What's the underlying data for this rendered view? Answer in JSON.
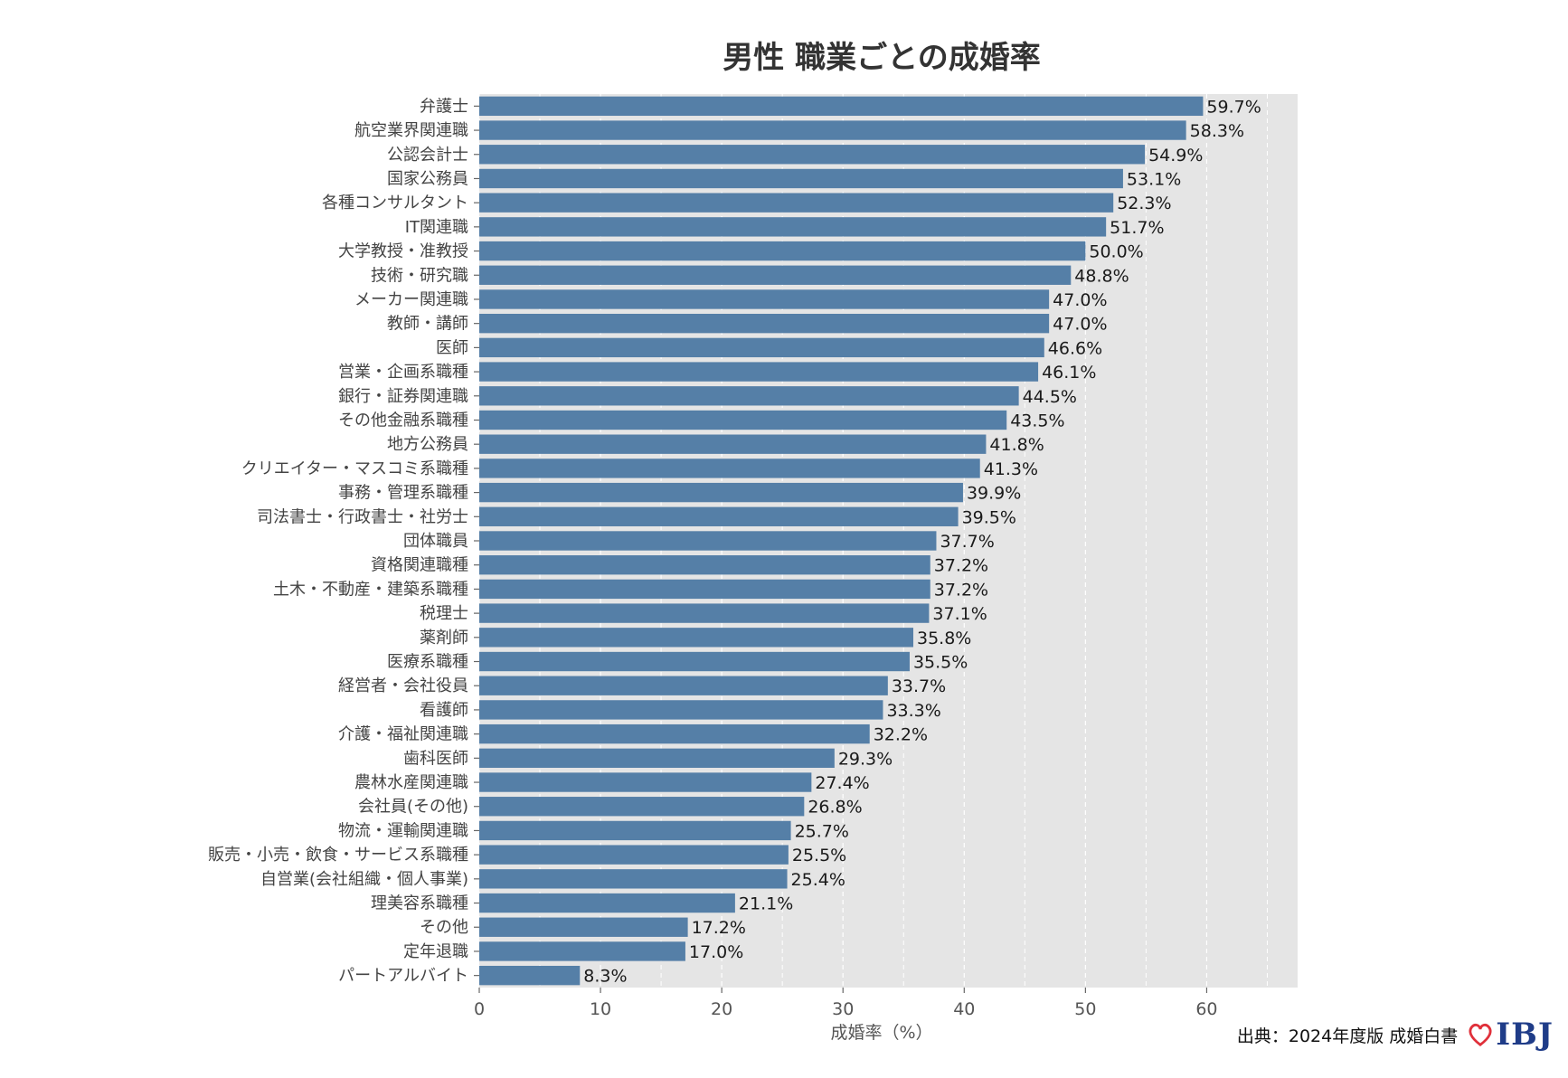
{
  "chart_data": {
    "type": "bar",
    "orientation": "horizontal",
    "title": "男性 職業ごとの成婚率",
    "xlabel": "成婚率（%）",
    "ylabel": "",
    "xlim": [
      0,
      67.5
    ],
    "xticks": [
      0,
      10,
      20,
      30,
      40,
      50,
      60
    ],
    "grid": true,
    "value_suffix": "%",
    "bar_color": "#557fa7",
    "background_color": "#e5e5e5",
    "categories": [
      "弁護士",
      "航空業界関連職",
      "公認会計士",
      "国家公務員",
      "各種コンサルタント",
      "IT関連職",
      "大学教授・准教授",
      "技術・研究職",
      "メーカー関連職",
      "教師・講師",
      "医師",
      "営業・企画系職種",
      "銀行・証券関連職",
      "その他金融系職種",
      "地方公務員",
      "クリエイター・マスコミ系職種",
      "事務・管理系職種",
      "司法書士・行政書士・社労士",
      "団体職員",
      "資格関連職種",
      "土木・不動産・建築系職種",
      "税理士",
      "薬剤師",
      "医療系職種",
      "経営者・会社役員",
      "看護師",
      "介護・福祉関連職",
      "歯科医師",
      "農林水産関連職",
      "会社員(その他)",
      "物流・運輸関連職",
      "販売・小売・飲食・サービス系職種",
      "自営業(会社組織・個人事業)",
      "理美容系職種",
      "その他",
      "定年退職",
      "パートアルバイト"
    ],
    "values": [
      59.7,
      58.3,
      54.9,
      53.1,
      52.3,
      51.7,
      50.0,
      48.8,
      47.0,
      47.0,
      46.6,
      46.1,
      44.5,
      43.5,
      41.8,
      41.3,
      39.9,
      39.5,
      37.7,
      37.2,
      37.2,
      37.1,
      35.8,
      35.5,
      33.7,
      33.3,
      32.2,
      29.3,
      27.4,
      26.8,
      25.7,
      25.5,
      25.4,
      21.1,
      17.2,
      17.0,
      8.3
    ],
    "value_labels": [
      "59.7%",
      "58.3%",
      "54.9%",
      "53.1%",
      "52.3%",
      "51.7%",
      "50.0%",
      "48.8%",
      "47.0%",
      "47.0%",
      "46.6%",
      "46.1%",
      "44.5%",
      "43.5%",
      "41.8%",
      "41.3%",
      "39.9%",
      "39.5%",
      "37.7%",
      "37.2%",
      "37.2%",
      "37.1%",
      "35.8%",
      "35.5%",
      "33.7%",
      "33.3%",
      "32.2%",
      "29.3%",
      "27.4%",
      "26.8%",
      "25.7%",
      "25.5%",
      "25.4%",
      "21.1%",
      "17.2%",
      "17.0%",
      "8.3%"
    ]
  },
  "source": {
    "text": "出典：2024年度版 成婚白書",
    "logo_text": "IBJ",
    "logo_heart_color": "#e0303a",
    "logo_text_color": "#1f3c88"
  }
}
